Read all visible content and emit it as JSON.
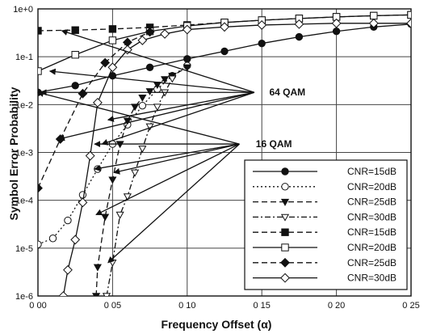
{
  "chart_data": {
    "type": "line",
    "title": "",
    "xlabel": "Frequency Offset (α)",
    "ylabel": "Symbol Error Probability",
    "xlim": [
      0,
      0.25
    ],
    "ylim": [
      1e-06,
      1
    ],
    "yscale": "log",
    "grid": true,
    "legend_position": "bottom-right",
    "x_ticks": [
      0,
      0.05,
      0.1,
      0.15,
      0.2,
      0.25
    ],
    "x_tick_labels": [
      "0 00",
      "0 05",
      "0 10",
      "0 15",
      "0 20",
      "0 25"
    ],
    "y_ticks": [
      1e-06,
      1e-05,
      0.0001,
      0.001,
      0.01,
      0.1,
      1
    ],
    "y_tick_labels": [
      "1e-6",
      "1e-5",
      "1e-4",
      "1e-3",
      "1e-2",
      "1e-1",
      "1e+0"
    ],
    "annotations": [
      {
        "text": "64 QAM",
        "x": 0.155,
        "y": 0.018
      },
      {
        "text": "16 QAM",
        "x": 0.146,
        "y": 0.0015
      }
    ],
    "series": [
      {
        "name": "CNR=15dB",
        "group": "64 QAM",
        "marker": "filled-circle",
        "dash": "solid",
        "x": [
          0,
          0.025,
          0.05,
          0.075,
          0.1,
          0.125,
          0.15,
          0.175,
          0.2,
          0.225,
          0.25
        ],
        "y": [
          0.018,
          0.025,
          0.04,
          0.06,
          0.09,
          0.13,
          0.19,
          0.26,
          0.34,
          0.42,
          0.48
        ]
      },
      {
        "name": "CNR=20dB",
        "group": "64 QAM",
        "marker": "open-circle",
        "dash": "dot",
        "x": [
          0,
          0.01,
          0.02,
          0.03,
          0.04,
          0.05,
          0.06,
          0.07,
          0.08,
          0.09,
          0.1
        ],
        "y": [
          1.2e-05,
          1.6e-05,
          3.8e-05,
          0.00013,
          0.00045,
          0.0015,
          0.0038,
          0.0095,
          0.021,
          0.04,
          0.065
        ]
      },
      {
        "name": "CNR=25dB",
        "group": "64 QAM",
        "marker": "filled-triangle-down",
        "dash": "dash",
        "x": [
          0.039,
          0.04,
          0.045,
          0.05,
          0.055,
          0.06,
          0.065,
          0.07,
          0.075,
          0.08,
          0.085,
          0.09,
          0.1
        ],
        "y": [
          1e-06,
          4e-06,
          4.5e-05,
          0.00027,
          0.0015,
          0.0046,
          0.009,
          0.014,
          0.019,
          0.026,
          0.034,
          0.04,
          0.06
        ]
      },
      {
        "name": "CNR=30dB",
        "group": "64 QAM",
        "marker": "open-triangle-down",
        "dash": "dashdot",
        "x": [
          0.046,
          0.05,
          0.055,
          0.06,
          0.065,
          0.07,
          0.075,
          0.08,
          0.085,
          0.09
        ],
        "y": [
          1e-06,
          5e-06,
          5e-05,
          0.00012,
          0.00038,
          0.0012,
          0.0035,
          0.009,
          0.018,
          0.035
        ]
      },
      {
        "name": "CNR=15dB",
        "group": "16 QAM",
        "marker": "filled-square",
        "dash": "dash",
        "x": [
          0,
          0.025,
          0.05,
          0.075,
          0.1,
          0.125,
          0.15,
          0.175,
          0.2,
          0.225,
          0.25
        ],
        "y": [
          0.35,
          0.36,
          0.38,
          0.41,
          0.46,
          0.52,
          0.58,
          0.63,
          0.68,
          0.72,
          0.75
        ]
      },
      {
        "name": "CNR=20dB",
        "group": "16 QAM",
        "marker": "open-square",
        "dash": "solid",
        "x": [
          0,
          0.025,
          0.05,
          0.075,
          0.1,
          0.125,
          0.15,
          0.175,
          0.2,
          0.225,
          0.25
        ],
        "y": [
          0.05,
          0.11,
          0.22,
          0.34,
          0.44,
          0.52,
          0.58,
          0.63,
          0.68,
          0.72,
          0.75
        ]
      },
      {
        "name": "CNR=25dB",
        "group": "16 QAM",
        "marker": "filled-diamond",
        "dash": "dash",
        "x": [
          0,
          0.015,
          0.03,
          0.045,
          0.06,
          0.075
        ],
        "y": [
          0.00018,
          0.0019,
          0.017,
          0.075,
          0.2,
          0.33
        ]
      },
      {
        "name": "CNR=30dB",
        "group": "16 QAM",
        "marker": "open-diamond",
        "dash": "solid",
        "x": [
          0.017,
          0.02,
          0.025,
          0.03,
          0.035,
          0.04,
          0.05,
          0.06,
          0.07,
          0.085,
          0.1,
          0.125,
          0.15,
          0.175,
          0.2,
          0.225,
          0.25
        ],
        "y": [
          1e-06,
          3.5e-06,
          1.5e-05,
          9e-05,
          0.00085,
          0.011,
          0.06,
          0.14,
          0.22,
          0.3,
          0.37,
          0.42,
          0.46,
          0.48,
          0.5,
          0.5,
          0.5
        ]
      }
    ]
  }
}
